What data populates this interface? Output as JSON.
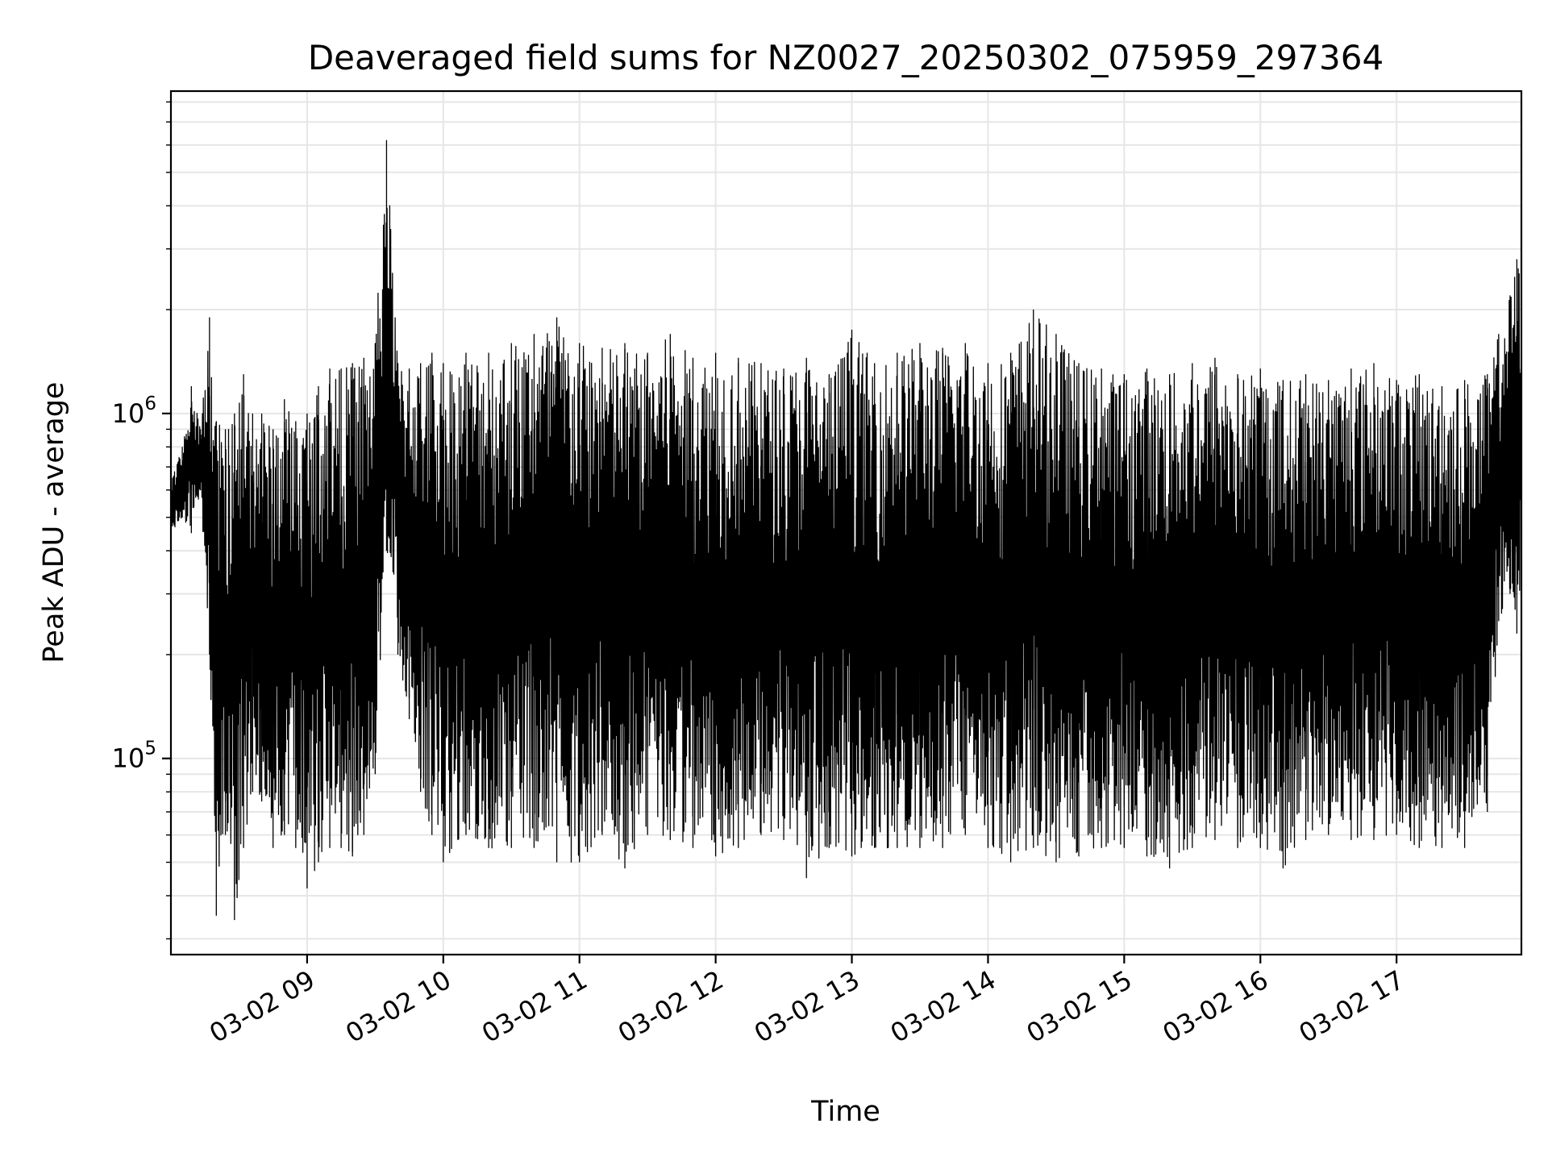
{
  "chart_data": {
    "type": "line",
    "title": "Deaveraged field sums for NZ0027_20250302_075959_297364",
    "xlabel": "Time",
    "ylabel": "Peak ADU - average",
    "yscale": "log",
    "ylim": [
      27000,
      8600000
    ],
    "xlim": [
      "2025-03-02 08:00",
      "2025-03-02 17:55"
    ],
    "grid": true,
    "x_ticks": [
      {
        "value": "2025-03-02 09:00",
        "label": "03-02 09"
      },
      {
        "value": "2025-03-02 10:00",
        "label": "03-02 10"
      },
      {
        "value": "2025-03-02 11:00",
        "label": "03-02 11"
      },
      {
        "value": "2025-03-02 12:00",
        "label": "03-02 12"
      },
      {
        "value": "2025-03-02 13:00",
        "label": "03-02 13"
      },
      {
        "value": "2025-03-02 14:00",
        "label": "03-02 14"
      },
      {
        "value": "2025-03-02 15:00",
        "label": "03-02 15"
      },
      {
        "value": "2025-03-02 16:00",
        "label": "03-02 16"
      },
      {
        "value": "2025-03-02 17:00",
        "label": "03-02 17"
      }
    ],
    "y_ticks": [
      {
        "value": 100000,
        "base": "10",
        "exp": "5"
      },
      {
        "value": 1000000,
        "base": "10",
        "exp": "6"
      }
    ],
    "series": [
      {
        "color": "#000000",
        "x": [
          "2025-03-02 08:00",
          "2025-03-02 08:05",
          "2025-03-02 08:09",
          "2025-03-02 08:13",
          "2025-03-02 08:17",
          "2025-03-02 08:20",
          "2025-03-02 08:24",
          "2025-03-02 08:28",
          "2025-03-02 08:32",
          "2025-03-02 08:36",
          "2025-03-02 08:40",
          "2025-03-02 08:45",
          "2025-03-02 08:50",
          "2025-03-02 08:55",
          "2025-03-02 09:00",
          "2025-03-02 09:05",
          "2025-03-02 09:10",
          "2025-03-02 09:15",
          "2025-03-02 09:20",
          "2025-03-02 09:25",
          "2025-03-02 09:30",
          "2025-03-02 09:35",
          "2025-03-02 09:40",
          "2025-03-02 09:45",
          "2025-03-02 09:50",
          "2025-03-02 09:55",
          "2025-03-02 10:00",
          "2025-03-02 10:10",
          "2025-03-02 10:20",
          "2025-03-02 10:30",
          "2025-03-02 10:40",
          "2025-03-02 10:50",
          "2025-03-02 11:00",
          "2025-03-02 11:10",
          "2025-03-02 11:20",
          "2025-03-02 11:30",
          "2025-03-02 11:40",
          "2025-03-02 11:50",
          "2025-03-02 12:00",
          "2025-03-02 12:10",
          "2025-03-02 12:20",
          "2025-03-02 12:30",
          "2025-03-02 12:40",
          "2025-03-02 12:50",
          "2025-03-02 13:00",
          "2025-03-02 13:10",
          "2025-03-02 13:20",
          "2025-03-02 13:30",
          "2025-03-02 13:40",
          "2025-03-02 13:50",
          "2025-03-02 14:00",
          "2025-03-02 14:10",
          "2025-03-02 14:20",
          "2025-03-02 14:30",
          "2025-03-02 14:40",
          "2025-03-02 14:50",
          "2025-03-02 15:00",
          "2025-03-02 15:10",
          "2025-03-02 15:20",
          "2025-03-02 15:30",
          "2025-03-02 15:40",
          "2025-03-02 15:50",
          "2025-03-02 16:00",
          "2025-03-02 16:10",
          "2025-03-02 16:20",
          "2025-03-02 16:30",
          "2025-03-02 16:40",
          "2025-03-02 16:50",
          "2025-03-02 17:00",
          "2025-03-02 17:10",
          "2025-03-02 17:20",
          "2025-03-02 17:30",
          "2025-03-02 17:40",
          "2025-03-02 17:45",
          "2025-03-02 17:50",
          "2025-03-02 17:53",
          "2025-03-02 17:55"
        ],
        "y_low": [
          450000,
          500000,
          450000,
          600000,
          200000,
          35000,
          60000,
          34000,
          55000,
          80000,
          75000,
          55000,
          60000,
          55000,
          42000,
          50000,
          55000,
          55000,
          52000,
          60000,
          90000,
          400000,
          200000,
          130000,
          80000,
          60000,
          50000,
          60000,
          55000,
          55000,
          55000,
          50000,
          50000,
          60000,
          48000,
          60000,
          58000,
          55000,
          52000,
          55000,
          60000,
          58000,
          45000,
          55000,
          52000,
          55000,
          55000,
          55000,
          55000,
          60000,
          55000,
          50000,
          55000,
          50000,
          52000,
          55000,
          55000,
          52000,
          48000,
          55000,
          58000,
          55000,
          55000,
          48000,
          58000,
          60000,
          58000,
          58000,
          60000,
          55000,
          55000,
          55000,
          70000,
          250000,
          300000,
          230000,
          280000
        ],
        "y_high": [
          650000,
          800000,
          1200000,
          900000,
          1900000,
          950000,
          900000,
          1000000,
          1300000,
          1000000,
          1000000,
          900000,
          1100000,
          950000,
          1000000,
          1200000,
          1350000,
          1350000,
          1400000,
          1450000,
          1600000,
          6200000,
          1400000,
          1350000,
          1400000,
          1500000,
          1400000,
          1500000,
          1500000,
          1600000,
          1700000,
          1900000,
          1600000,
          1550000,
          1600000,
          1500000,
          1700000,
          1450000,
          1500000,
          1450000,
          1400000,
          1350000,
          1450000,
          1300000,
          1750000,
          1400000,
          1500000,
          1600000,
          1550000,
          1600000,
          1400000,
          1500000,
          2000000,
          1700000,
          1400000,
          1350000,
          1300000,
          1350000,
          1300000,
          1400000,
          1450000,
          1300000,
          1350000,
          1250000,
          1300000,
          1250000,
          1350000,
          1400000,
          1250000,
          1300000,
          1200000,
          1250000,
          1300000,
          1700000,
          2200000,
          2800000,
          2600000
        ]
      }
    ]
  }
}
